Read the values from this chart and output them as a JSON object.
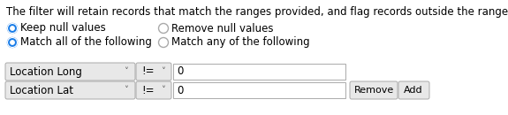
{
  "bg_color": "#ffffff",
  "description": "The filter will retain records that match the ranges provided, and flag records outside the ranges.",
  "radio_selected_color": "#1a7de8",
  "radio_unselected_color": "#ffffff",
  "radio_border_color": "#aaaaaa",
  "option1_label": "Keep null values",
  "option2_label": "Remove null values",
  "option3_label": "Match all of the following",
  "option4_label": "Match any of the following",
  "row1_dropdown1": "Location Long",
  "row1_operator": "!=",
  "row1_value": "0",
  "row2_dropdown1": "Location Lat",
  "row2_operator": "!=",
  "row2_value": "0",
  "box_bg": "#e8e8e8",
  "box_border": "#aaaaaa",
  "text_color": "#000000",
  "font_size": 8.5
}
